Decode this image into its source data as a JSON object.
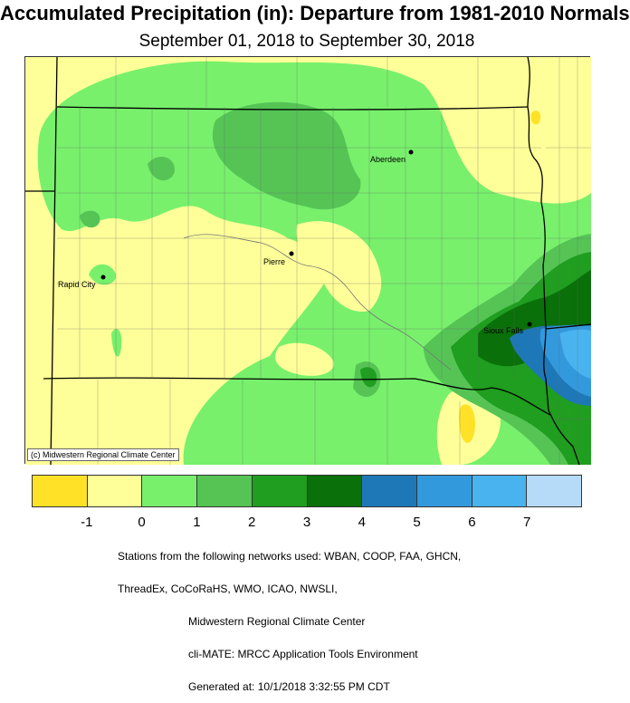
{
  "title": "Accumulated Precipitation (in): Departure from 1981-2010 Normals",
  "subtitle": "September 01, 2018 to September 30, 2018",
  "credit": "(c) Midwestern Regional Climate Center",
  "cities": [
    {
      "name": "Aberdeen"
    },
    {
      "name": "Pierre"
    },
    {
      "name": "Rapid City"
    },
    {
      "name": "Sioux Falls"
    }
  ],
  "legend": {
    "colors": [
      "#ffe227",
      "#ffff99",
      "#78f06c",
      "#55c455",
      "#1f9e1f",
      "#0a700a",
      "#1e78b8",
      "#3399dd",
      "#49b3f0",
      "#b5dbf8"
    ],
    "ticks": [
      "-1",
      "0",
      "1",
      "2",
      "3",
      "4",
      "5",
      "6",
      "7"
    ]
  },
  "footer": [
    "Stations from the following networks used: WBAN, COOP, FAA, GHCN,",
    "ThreadEx, CoCoRaHS, WMO, ICAO, NWSLI,",
    "Midwestern Regional Climate Center",
    "cli-MATE: MRCC Application Tools Environment",
    "Generated at: 10/1/2018 3:32:55 PM CDT"
  ]
}
